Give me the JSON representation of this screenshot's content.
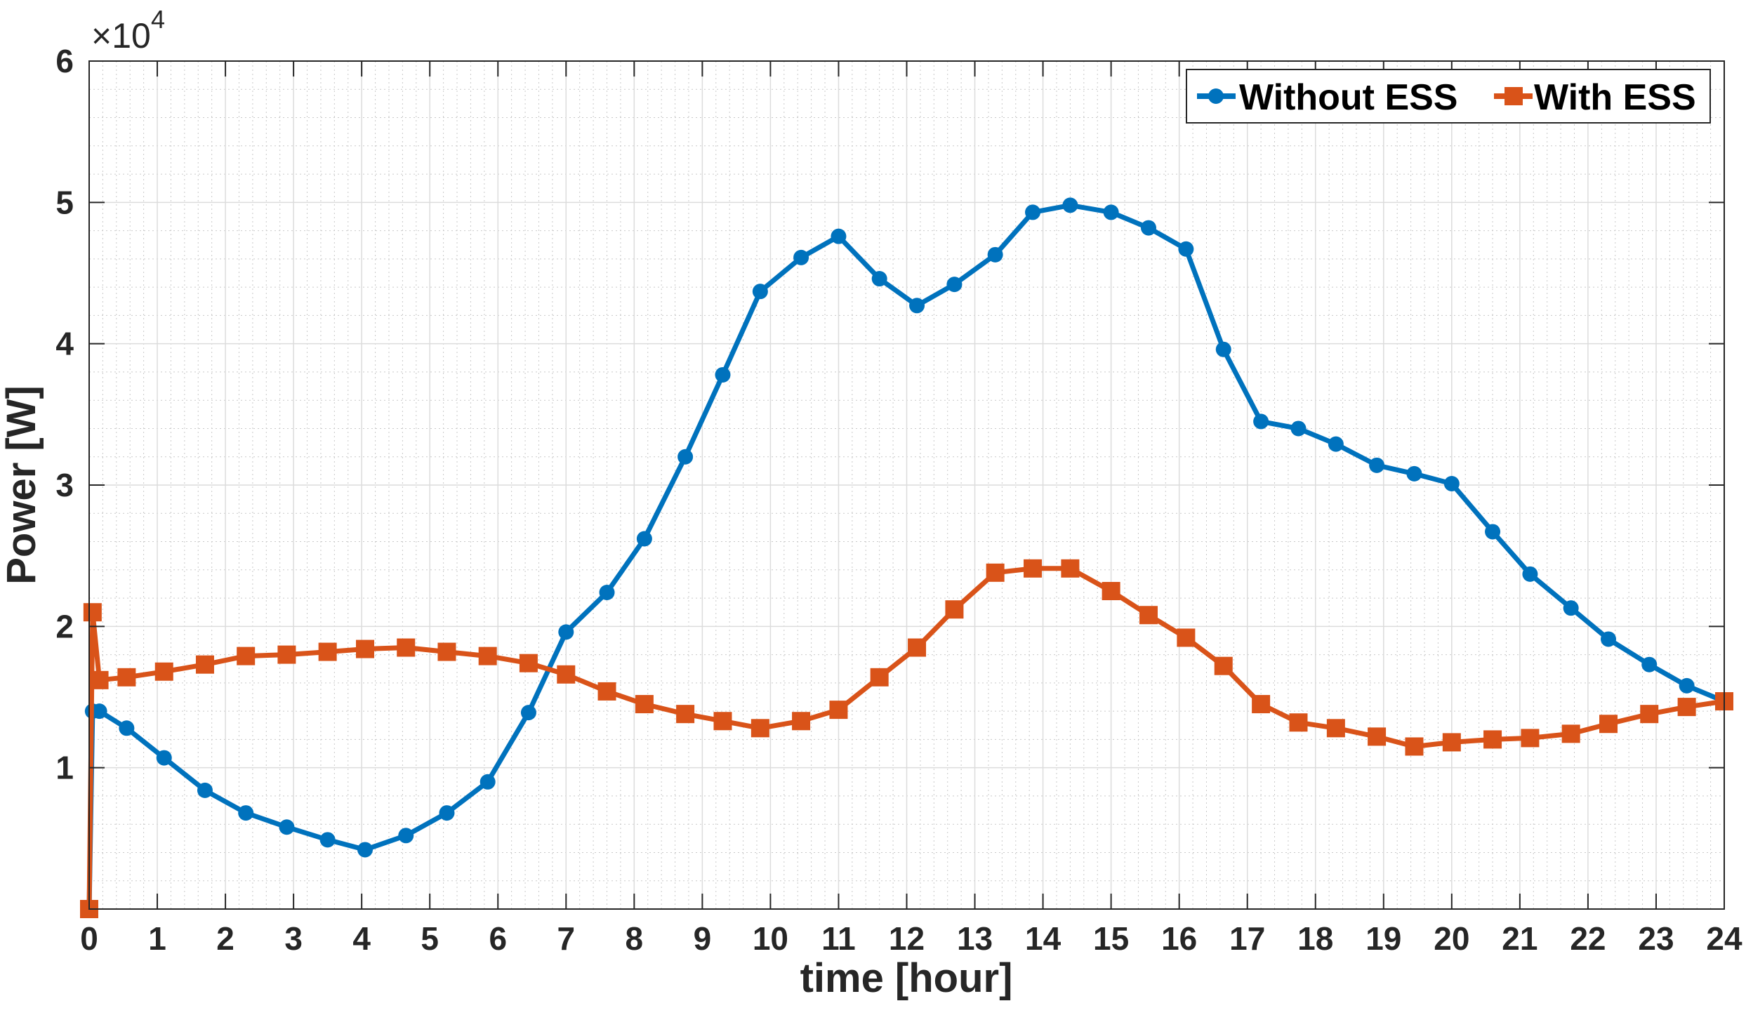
{
  "chart_data": {
    "type": "line",
    "xlabel": "time [hour]",
    "ylabel": "Power [W]",
    "x_ticks": [
      "0",
      "1",
      "2",
      "3",
      "4",
      "5",
      "6",
      "7",
      "8",
      "9",
      "10",
      "11",
      "12",
      "13",
      "14",
      "15",
      "16",
      "17",
      "18",
      "19",
      "20",
      "21",
      "22",
      "23",
      "24"
    ],
    "y_ticks": [
      "1",
      "2",
      "3",
      "4",
      "5",
      "6"
    ],
    "y_exponent_base": "×10",
    "y_exponent_power": "4",
    "xlim": [
      0,
      24
    ],
    "ylim": [
      0,
      60000
    ],
    "grid": "major and minor",
    "legend_position": "top-right",
    "colors": {
      "without": "#0072BD",
      "with": "#D95319"
    },
    "series": [
      {
        "name": "Without ESS",
        "marker": "circle",
        "x": [
          0,
          0.05,
          0.15,
          0.55,
          1.1,
          1.7,
          2.3,
          2.9,
          3.5,
          4.05,
          4.65,
          5.25,
          5.85,
          6.45,
          7.0,
          7.6,
          8.15,
          8.75,
          9.3,
          9.85,
          10.45,
          11.0,
          11.6,
          12.15,
          12.7,
          13.3,
          13.85,
          14.4,
          15.0,
          15.55,
          16.1,
          16.65,
          17.2,
          17.75,
          18.3,
          18.9,
          19.45,
          20.0,
          20.6,
          21.15,
          21.75,
          22.3,
          22.9,
          23.45,
          24.0
        ],
        "y": [
          0,
          14000,
          14000,
          12800,
          10700,
          8400,
          6800,
          5800,
          4900,
          4200,
          5200,
          6800,
          9000,
          13900,
          19600,
          22400,
          26200,
          32000,
          37800,
          43700,
          46100,
          47600,
          44600,
          42700,
          44200,
          46300,
          49300,
          49800,
          49300,
          48200,
          46700,
          39600,
          34500,
          34000,
          32900,
          31400,
          30800,
          30100,
          26700,
          23700,
          21300,
          19100,
          17300,
          15800,
          14700
        ]
      },
      {
        "name": "With ESS",
        "marker": "square",
        "x": [
          0,
          0.05,
          0.15,
          0.55,
          1.1,
          1.7,
          2.3,
          2.9,
          3.5,
          4.05,
          4.65,
          5.25,
          5.85,
          6.45,
          7.0,
          7.6,
          8.15,
          8.75,
          9.3,
          9.85,
          10.45,
          11.0,
          11.6,
          12.15,
          12.7,
          13.3,
          13.85,
          14.4,
          15.0,
          15.55,
          16.1,
          16.65,
          17.2,
          17.75,
          18.3,
          18.9,
          19.45,
          20.0,
          20.6,
          21.15,
          21.75,
          22.3,
          22.9,
          23.45,
          24.0
        ],
        "y": [
          0,
          21000,
          16200,
          16400,
          16800,
          17300,
          17900,
          18000,
          18200,
          18400,
          18500,
          18200,
          17900,
          17400,
          16600,
          15400,
          14500,
          13800,
          13300,
          12800,
          13300,
          14100,
          16400,
          18500,
          21200,
          23800,
          24100,
          24100,
          22500,
          20800,
          19200,
          17200,
          14500,
          13200,
          12800,
          12200,
          11500,
          11800,
          12000,
          12100,
          12400,
          13100,
          13800,
          14300,
          14700
        ]
      }
    ]
  }
}
